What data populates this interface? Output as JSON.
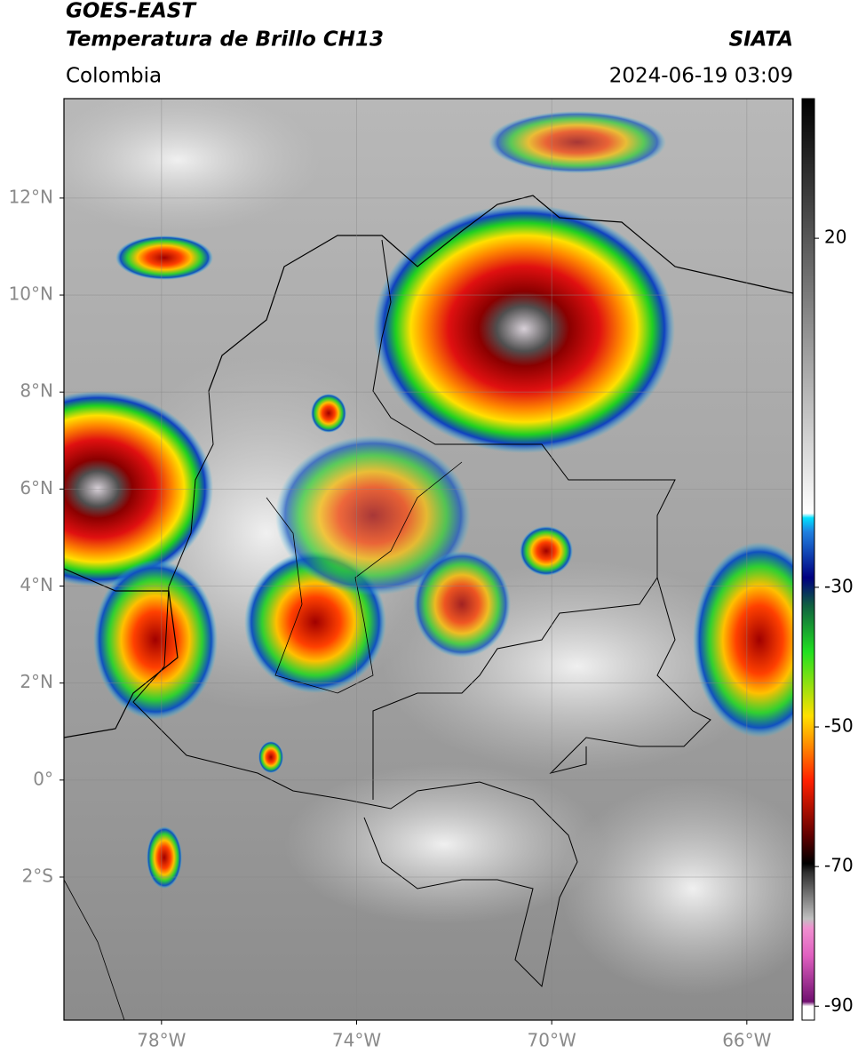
{
  "header": {
    "satellite": "GOES-EAST",
    "product": "Temperatura de Brillo CH13",
    "agency": "SIATA",
    "region": "Colombia",
    "datetime": "2024-06-19 03:09"
  },
  "map": {
    "lon_lim": [
      -80,
      -65.05
    ],
    "lat_lim": [
      -4.95,
      14.05
    ],
    "lon_ticks": [
      {
        "value": -78,
        "label": "78°W"
      },
      {
        "value": -74,
        "label": "74°W"
      },
      {
        "value": -70,
        "label": "70°W"
      },
      {
        "value": -66,
        "label": "66°W"
      }
    ],
    "lat_ticks": [
      {
        "value": 12,
        "label": "12°N"
      },
      {
        "value": 10,
        "label": "10°N"
      },
      {
        "value": 8,
        "label": "8°N"
      },
      {
        "value": 6,
        "label": "6°N"
      },
      {
        "value": 4,
        "label": "4°N"
      },
      {
        "value": 2,
        "label": "2°N"
      },
      {
        "value": 0,
        "label": "0°"
      },
      {
        "value": -2,
        "label": "2°S"
      }
    ]
  },
  "colorbar": {
    "lim": [
      -92,
      40
    ],
    "ticks": [
      20,
      -30,
      -50,
      -70,
      -90
    ]
  }
}
